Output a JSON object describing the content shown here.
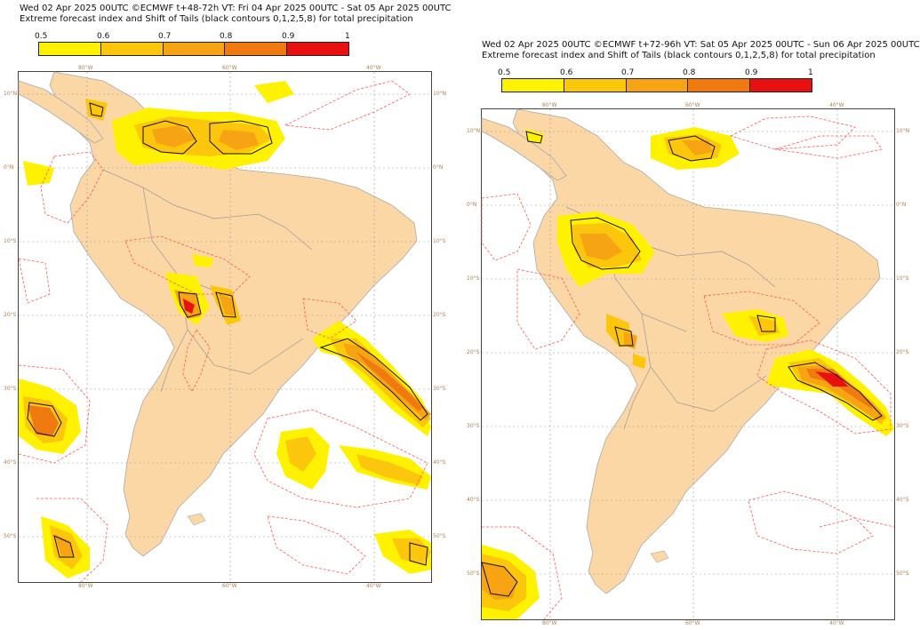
{
  "colors": {
    "land": "#fcd7a6",
    "ocean": "#ffffff",
    "c05": "#fff200",
    "c06": "#fcc60c",
    "c07": "#f6a314",
    "c08": "#f07a10",
    "c09": "#e8110f",
    "contour_red": "#ff5555",
    "contour_black": "#111111"
  },
  "panels": [
    {
      "title_line1": "Wed 02 Apr 2025 00UTC ©ECMWF t+48-72h  VT: Fri 04 Apr 2025 00UTC - Sat 05 Apr 2025 00UTC",
      "title_line2": "Extreme forecast index and Shift of Tails (black contours 0,1,2,5,8) for total precipitation",
      "colorbar": {
        "labels": [
          "0.5",
          "0.6",
          "0.7",
          "0.8",
          "0.9",
          "1"
        ]
      },
      "lon_labels": [
        "80°W",
        "60°W",
        "40°W"
      ],
      "lat_labels": [
        "10°N",
        "0°N",
        "10°S",
        "20°S",
        "30°S",
        "40°S",
        "50°S"
      ]
    },
    {
      "title_line1": "Wed 02 Apr 2025 00UTC ©ECMWF t+72-96h  VT: Sat 05 Apr 2025 00UTC - Sun 06 Apr 2025 00UTC",
      "title_line2": "Extreme forecast index and Shift of Tails (black contours 0,1,2,5,8) for total precipitation",
      "colorbar": {
        "labels": [
          "0.5",
          "0.6",
          "0.7",
          "0.8",
          "0.9",
          "1"
        ]
      },
      "lon_labels": [
        "80°W",
        "60°W",
        "40°W"
      ],
      "lat_labels": [
        "10°N",
        "0°N",
        "10°S",
        "20°S",
        "30°S",
        "40°S",
        "50°S"
      ]
    }
  ]
}
